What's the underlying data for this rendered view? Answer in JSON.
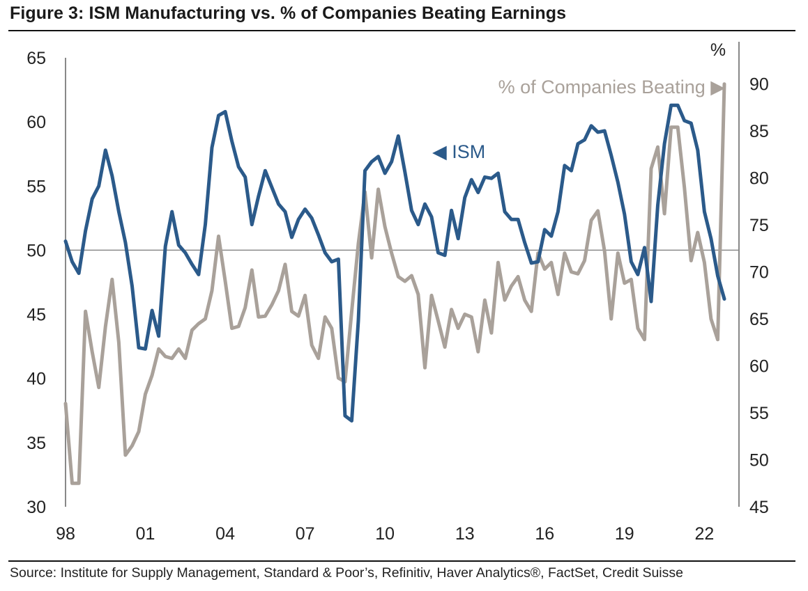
{
  "title": "Figure 3: ISM Manufacturing vs. % of Companies Beating Earnings",
  "source": "Source: Institute for Supply Management, Standard & Poor’s, Refinitiv, Haver Analytics®, FactSet, Credit Suisse",
  "chart_data": {
    "type": "line",
    "title": "Figure 3: ISM Manufacturing vs. % of Companies Beating Earnings",
    "x_tick_labels": [
      "98",
      "01",
      "04",
      "07",
      "10",
      "13",
      "16",
      "19",
      "22"
    ],
    "x_tick_years": [
      1998,
      2001,
      2004,
      2007,
      2010,
      2013,
      2016,
      2019,
      2022
    ],
    "xlim": [
      1998,
      2023.3
    ],
    "y_left": {
      "label": "",
      "ticks": [
        30,
        35,
        40,
        45,
        50,
        55,
        60,
        65
      ],
      "ylim": [
        30,
        65
      ]
    },
    "y_right": {
      "label": "%",
      "ticks": [
        45,
        50,
        55,
        60,
        65,
        70,
        75,
        80,
        85,
        90
      ],
      "ylim": [
        45,
        92.5
      ]
    },
    "reference_line": {
      "axis": "left",
      "value": 50
    },
    "series": [
      {
        "name": "ISM",
        "label": "◀ ISM",
        "axis": "left",
        "color": "#2b5a8a",
        "points": [
          [
            1998.0,
            50.7
          ],
          [
            1998.25,
            49.1
          ],
          [
            1998.5,
            48.2
          ],
          [
            1998.75,
            51.5
          ],
          [
            1999.0,
            54.0
          ],
          [
            1999.25,
            55.0
          ],
          [
            1999.5,
            57.8
          ],
          [
            1999.75,
            55.8
          ],
          [
            2000.0,
            53.0
          ],
          [
            2000.25,
            50.6
          ],
          [
            2000.5,
            47.2
          ],
          [
            2000.75,
            42.4
          ],
          [
            2001.0,
            42.3
          ],
          [
            2001.25,
            45.3
          ],
          [
            2001.5,
            43.3
          ],
          [
            2001.75,
            50.3
          ],
          [
            2002.0,
            53.0
          ],
          [
            2002.25,
            50.4
          ],
          [
            2002.5,
            49.8
          ],
          [
            2002.75,
            48.9
          ],
          [
            2003.0,
            48.1
          ],
          [
            2003.25,
            52.0
          ],
          [
            2003.5,
            58.0
          ],
          [
            2003.75,
            60.5
          ],
          [
            2004.0,
            60.8
          ],
          [
            2004.25,
            58.5
          ],
          [
            2004.5,
            56.5
          ],
          [
            2004.75,
            55.7
          ],
          [
            2005.0,
            52.0
          ],
          [
            2005.25,
            54.2
          ],
          [
            2005.5,
            56.2
          ],
          [
            2005.75,
            54.9
          ],
          [
            2006.0,
            53.6
          ],
          [
            2006.25,
            53.0
          ],
          [
            2006.5,
            51.0
          ],
          [
            2006.75,
            52.4
          ],
          [
            2007.0,
            53.2
          ],
          [
            2007.25,
            52.5
          ],
          [
            2007.5,
            51.2
          ],
          [
            2007.75,
            49.8
          ],
          [
            2008.0,
            49.1
          ],
          [
            2008.25,
            49.3
          ],
          [
            2008.5,
            37.1
          ],
          [
            2008.75,
            36.7
          ],
          [
            2009.0,
            44.5
          ],
          [
            2009.25,
            56.2
          ],
          [
            2009.5,
            56.9
          ],
          [
            2009.75,
            57.3
          ],
          [
            2010.0,
            56.0
          ],
          [
            2010.25,
            56.9
          ],
          [
            2010.5,
            58.9
          ],
          [
            2010.75,
            56.1
          ],
          [
            2011.0,
            53.1
          ],
          [
            2011.25,
            52.0
          ],
          [
            2011.5,
            53.6
          ],
          [
            2011.75,
            52.6
          ],
          [
            2012.0,
            49.8
          ],
          [
            2012.25,
            49.6
          ],
          [
            2012.5,
            53.1
          ],
          [
            2012.75,
            50.9
          ],
          [
            2013.0,
            54.1
          ],
          [
            2013.25,
            55.5
          ],
          [
            2013.5,
            54.5
          ],
          [
            2013.75,
            55.7
          ],
          [
            2014.0,
            55.6
          ],
          [
            2014.25,
            56.0
          ],
          [
            2014.5,
            53.0
          ],
          [
            2014.75,
            52.4
          ],
          [
            2015.0,
            52.4
          ],
          [
            2015.25,
            50.6
          ],
          [
            2015.5,
            49.0
          ],
          [
            2015.75,
            49.1
          ],
          [
            2016.0,
            51.6
          ],
          [
            2016.25,
            51.1
          ],
          [
            2016.5,
            53.0
          ],
          [
            2016.75,
            56.6
          ],
          [
            2017.0,
            56.2
          ],
          [
            2017.25,
            58.3
          ],
          [
            2017.5,
            58.6
          ],
          [
            2017.75,
            59.7
          ],
          [
            2018.0,
            59.2
          ],
          [
            2018.25,
            59.3
          ],
          [
            2018.5,
            57.4
          ],
          [
            2018.75,
            55.3
          ],
          [
            2019.0,
            52.8
          ],
          [
            2019.25,
            49.1
          ],
          [
            2019.5,
            48.1
          ],
          [
            2019.75,
            50.2
          ],
          [
            2020.0,
            46.0
          ],
          [
            2020.25,
            53.5
          ],
          [
            2020.5,
            58.3
          ],
          [
            2020.75,
            61.3
          ],
          [
            2021.0,
            61.3
          ],
          [
            2021.25,
            60.1
          ],
          [
            2021.5,
            59.9
          ],
          [
            2021.75,
            57.8
          ],
          [
            2022.0,
            53.0
          ],
          [
            2022.25,
            50.9
          ],
          [
            2022.5,
            48.0
          ],
          [
            2022.75,
            46.2
          ]
        ]
      },
      {
        "name": "% of Companies Beating",
        "label": "% of Companies Beating ▶",
        "axis": "right",
        "color": "#a9a19a",
        "points": [
          [
            1998.0,
            56.0
          ],
          [
            1998.25,
            47.5
          ],
          [
            1998.5,
            47.5
          ],
          [
            1998.75,
            65.8
          ],
          [
            1999.0,
            61.5
          ],
          [
            1999.25,
            57.7
          ],
          [
            1999.5,
            64.2
          ],
          [
            1999.75,
            69.2
          ],
          [
            2000.0,
            62.5
          ],
          [
            2000.25,
            50.5
          ],
          [
            2000.5,
            51.5
          ],
          [
            2000.75,
            53.0
          ],
          [
            2001.0,
            57.0
          ],
          [
            2001.25,
            59.0
          ],
          [
            2001.5,
            61.8
          ],
          [
            2001.75,
            61.0
          ],
          [
            2002.0,
            60.8
          ],
          [
            2002.25,
            61.8
          ],
          [
            2002.5,
            60.8
          ],
          [
            2002.75,
            63.8
          ],
          [
            2003.0,
            64.5
          ],
          [
            2003.25,
            65.0
          ],
          [
            2003.5,
            68.0
          ],
          [
            2003.75,
            73.8
          ],
          [
            2004.0,
            69.0
          ],
          [
            2004.25,
            64.0
          ],
          [
            2004.5,
            64.2
          ],
          [
            2004.75,
            66.2
          ],
          [
            2005.0,
            70.2
          ],
          [
            2005.25,
            65.2
          ],
          [
            2005.5,
            65.3
          ],
          [
            2005.75,
            66.5
          ],
          [
            2006.0,
            68.0
          ],
          [
            2006.25,
            70.8
          ],
          [
            2006.5,
            65.8
          ],
          [
            2006.75,
            65.3
          ],
          [
            2007.0,
            67.5
          ],
          [
            2007.25,
            62.2
          ],
          [
            2007.5,
            60.8
          ],
          [
            2007.75,
            65.2
          ],
          [
            2008.0,
            64.0
          ],
          [
            2008.25,
            58.7
          ],
          [
            2008.5,
            58.3
          ],
          [
            2008.75,
            65.8
          ],
          [
            2009.0,
            73.0
          ],
          [
            2009.25,
            78.5
          ],
          [
            2009.5,
            71.5
          ],
          [
            2009.75,
            78.8
          ],
          [
            2010.0,
            74.8
          ],
          [
            2010.25,
            72.0
          ],
          [
            2010.5,
            69.5
          ],
          [
            2010.75,
            69.0
          ],
          [
            2011.0,
            69.6
          ],
          [
            2011.25,
            67.6
          ],
          [
            2011.5,
            59.8
          ],
          [
            2011.75,
            67.5
          ],
          [
            2012.0,
            64.8
          ],
          [
            2012.25,
            62.0
          ],
          [
            2012.5,
            66.0
          ],
          [
            2012.75,
            64.0
          ],
          [
            2013.0,
            65.5
          ],
          [
            2013.25,
            65.2
          ],
          [
            2013.5,
            61.5
          ],
          [
            2013.75,
            67.0
          ],
          [
            2014.0,
            63.5
          ],
          [
            2014.25,
            71.0
          ],
          [
            2014.5,
            67.0
          ],
          [
            2014.75,
            68.5
          ],
          [
            2015.0,
            69.5
          ],
          [
            2015.25,
            67.0
          ],
          [
            2015.5,
            65.8
          ],
          [
            2015.75,
            72.0
          ],
          [
            2016.0,
            70.3
          ],
          [
            2016.25,
            71.0
          ],
          [
            2016.5,
            67.6
          ],
          [
            2016.75,
            72.0
          ],
          [
            2017.0,
            70.0
          ],
          [
            2017.25,
            69.8
          ],
          [
            2017.5,
            71.2
          ],
          [
            2017.75,
            75.5
          ],
          [
            2018.0,
            76.5
          ],
          [
            2018.25,
            72.2
          ],
          [
            2018.5,
            65.0
          ],
          [
            2018.75,
            72.0
          ],
          [
            2019.0,
            68.8
          ],
          [
            2019.25,
            69.2
          ],
          [
            2019.5,
            64.0
          ],
          [
            2019.75,
            62.8
          ],
          [
            2020.0,
            81.0
          ],
          [
            2020.25,
            83.3
          ],
          [
            2020.5,
            76.2
          ],
          [
            2020.75,
            85.4
          ],
          [
            2021.0,
            85.4
          ],
          [
            2021.25,
            79.0
          ],
          [
            2021.5,
            71.2
          ],
          [
            2021.75,
            74.2
          ],
          [
            2022.0,
            71.0
          ],
          [
            2022.25,
            65.0
          ],
          [
            2022.5,
            62.8
          ],
          [
            2022.75,
            90.0
          ]
        ]
      }
    ],
    "legend": "inline labels, top-right"
  }
}
